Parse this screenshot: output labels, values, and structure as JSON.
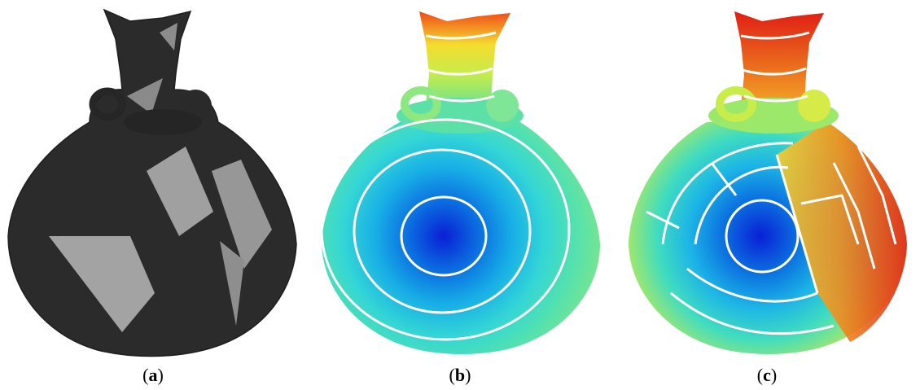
{
  "figure": {
    "panels": [
      {
        "id": "a",
        "caption_open": "(",
        "caption_letter": "a",
        "caption_close": ")",
        "render": "grayscale-texture"
      },
      {
        "id": "b",
        "caption_open": "(",
        "caption_letter": "b",
        "caption_close": ")",
        "render": "geodesic-distance-colormap"
      },
      {
        "id": "c",
        "caption_open": "(",
        "caption_letter": "c",
        "caption_close": ")",
        "render": "geodesic-distance-colormap-segmented"
      }
    ],
    "colors": {
      "texture_dark": "#2c2c2c",
      "texture_light": "#9a9a9a",
      "isoline": "#ffffff",
      "colormap": [
        "#0a1fd6",
        "#0b7de0",
        "#1fb8e6",
        "#3fe0c8",
        "#9be86a",
        "#f2e23a",
        "#f59a1e",
        "#e8251a"
      ]
    }
  }
}
